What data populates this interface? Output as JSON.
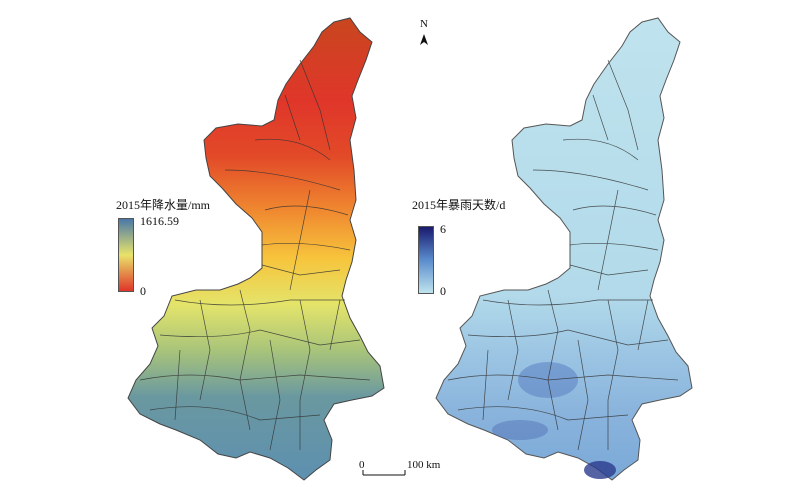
{
  "left_map": {
    "legend_title": "2015年降水量/mm",
    "legend_max": "1616.59",
    "legend_min": "0",
    "colors": {
      "high": "#4a78a8",
      "mid": "#e8e36a",
      "low": "#e0352a"
    }
  },
  "right_map": {
    "legend_title": "2015年暴雨天数/d",
    "legend_max": "6",
    "legend_min": "0",
    "colors": {
      "high": "#1a1a6e",
      "mid": "#5a8ccc",
      "low": "#bfe3ee"
    }
  },
  "north_arrow": {
    "label": "N"
  },
  "scale_bar": {
    "start": "0",
    "end": "100 km"
  }
}
